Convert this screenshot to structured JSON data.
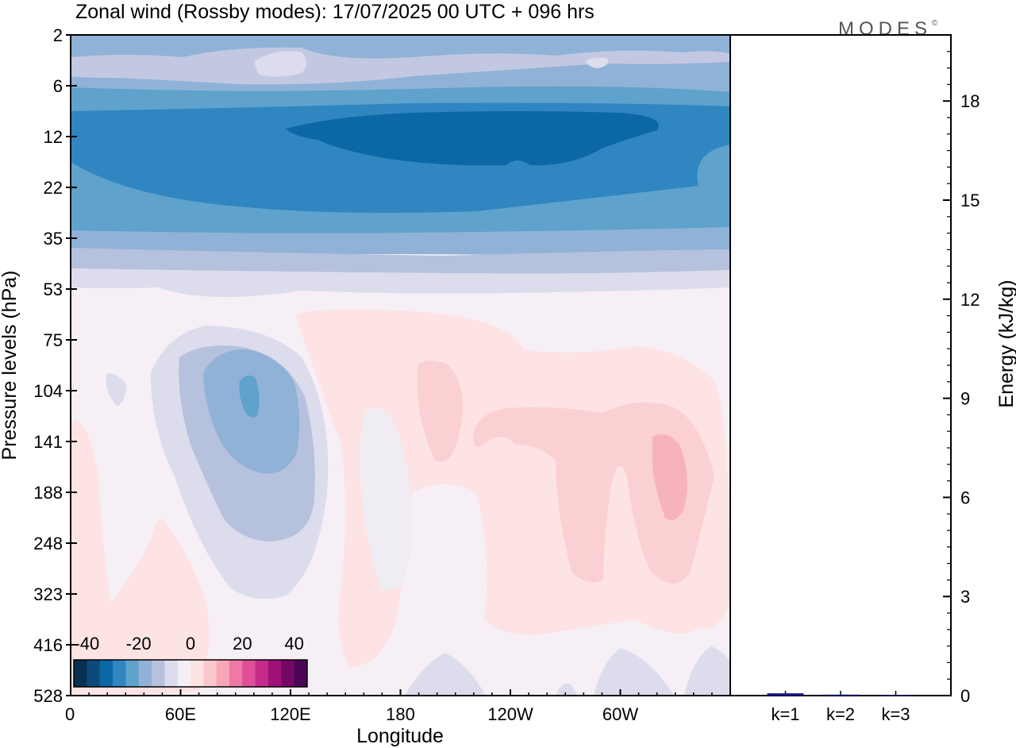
{
  "title": "Zonal wind (Rossby modes):  17/07/2025  00 UTC  + 096 hrs",
  "logo": "MODES",
  "logo_mark": "©",
  "colors": {
    "frame": "#000000",
    "energy_bar": "#1a1a8c"
  },
  "chart_data": [
    {
      "type": "heatmap",
      "title": "Zonal wind (Rossby modes):  17/07/2025  00 UTC  + 096 hrs",
      "xlabel": "Longitude",
      "ylabel": "Pressure levels (hPa)",
      "x_ticks": [
        "0",
        "60E",
        "120E",
        "180",
        "120W",
        "60W"
      ],
      "y_ticks": [
        "2",
        "6",
        "12",
        "22",
        "35",
        "53",
        "75",
        "104",
        "141",
        "188",
        "248",
        "323",
        "416",
        "528"
      ],
      "colorbar": {
        "tick_labels": [
          "-40",
          "-20",
          "0",
          "20",
          "40"
        ],
        "levels": [
          -45,
          -40,
          -35,
          -30,
          -25,
          -20,
          -15,
          -10,
          -5,
          0,
          5,
          10,
          15,
          20,
          25,
          30,
          35,
          40,
          45
        ],
        "colors": [
          "#08304f",
          "#0d4a7a",
          "#0b67a6",
          "#2f86c0",
          "#5fa2cc",
          "#8fb2d6",
          "#b6c1de",
          "#dcdcec",
          "#f5eef5",
          "#fde3e3",
          "#fbc8cc",
          "#f7a6b8",
          "#ef79a6",
          "#df4f98",
          "#c42b8b",
          "#9e1278",
          "#740766",
          "#4a0557"
        ]
      },
      "bands_approx": [
        {
          "p_top": 2,
          "p_bottom": 6,
          "u": -15
        },
        {
          "p_top": 6,
          "p_bottom": 9,
          "u": -22
        },
        {
          "p_top": 9,
          "p_bottom": 22,
          "u": -32
        },
        {
          "p_top": 22,
          "p_bottom": 35,
          "u": -25
        },
        {
          "p_top": 35,
          "p_bottom": 48,
          "u": -12
        },
        {
          "p_top": 48,
          "p_bottom": 528,
          "u": 0
        }
      ]
    },
    {
      "type": "bar",
      "ylabel": "Energy (kJ/kg)",
      "y_ticks": [
        "0",
        "3",
        "6",
        "9",
        "12",
        "15",
        "18"
      ],
      "ylim": [
        0,
        20
      ],
      "categories": [
        "k=1",
        "k=2",
        "k=3"
      ],
      "values": [
        0.07,
        0.03,
        0.01
      ]
    }
  ]
}
